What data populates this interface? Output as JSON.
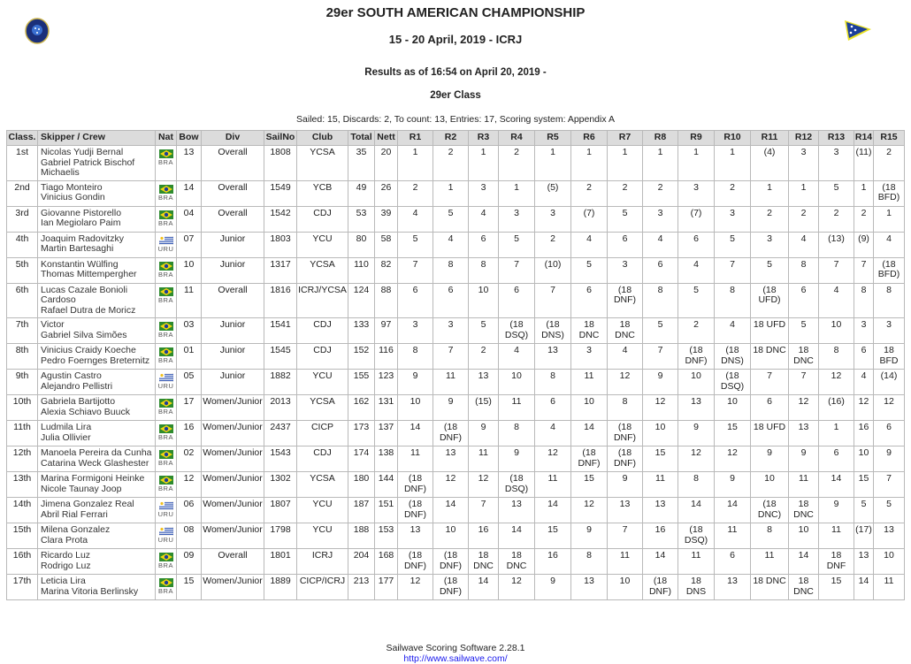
{
  "header": {
    "title": "29er SOUTH AMERICAN CHAMPIONSHIP",
    "subtitle": "15 - 20 April, 2019 - ICRJ",
    "results_as_of": "Results as of 16:54 on April 20, 2019 -",
    "class_name": "29er Class",
    "info": "Sailed: 15, Discards: 2, To count: 13, Entries: 17, Scoring system: Appendix A",
    "left_logo": "club-emblem-icon",
    "right_logo": "burgee-flag-icon"
  },
  "colors": {
    "header_bg": "#dcdcdc",
    "border": "#b9b9b9",
    "link": "#1a1aee",
    "brazil_green": "#2e8b2e",
    "uruguay_blue": "#2a4fb0"
  },
  "table": {
    "columns": [
      "Class.",
      "Skipper / Crew",
      "Nat",
      "Bow",
      "Div",
      "SailNo",
      "Club",
      "Total",
      "Nett",
      "R1",
      "R2",
      "R3",
      "R4",
      "R5",
      "R6",
      "R7",
      "R8",
      "R9",
      "R10",
      "R11",
      "R12",
      "R13",
      "R14",
      "R15"
    ],
    "rows": [
      {
        "pos": "1st",
        "skipper": "Nicolas Yudji Bernal",
        "crew": "Gabriel Patrick Bischof Michaelis",
        "nat": "BRA",
        "bow": "13",
        "div": "Overall",
        "sailno": "1808",
        "club": "YCSA",
        "total": "35",
        "nett": "20",
        "races": [
          "1",
          "2",
          "1",
          "2",
          "1",
          "1",
          "1",
          "1",
          "1",
          "1",
          "(4)",
          "3",
          "3",
          "(11)",
          "2"
        ]
      },
      {
        "pos": "2nd",
        "skipper": "Tiago Monteiro",
        "crew": "Vinicius Gondin",
        "nat": "BRA",
        "bow": "14",
        "div": "Overall",
        "sailno": "1549",
        "club": "YCB",
        "total": "49",
        "nett": "26",
        "races": [
          "2",
          "1",
          "3",
          "1",
          "(5)",
          "2",
          "2",
          "2",
          "3",
          "2",
          "1",
          "1",
          "5",
          "1",
          "(18 BFD)"
        ]
      },
      {
        "pos": "3rd",
        "skipper": "Giovanne Pistorello",
        "crew": "Ian Megiolaro Paim",
        "nat": "BRA",
        "bow": "04",
        "div": "Overall",
        "sailno": "1542",
        "club": "CDJ",
        "total": "53",
        "nett": "39",
        "races": [
          "4",
          "5",
          "4",
          "3",
          "3",
          "(7)",
          "5",
          "3",
          "(7)",
          "3",
          "2",
          "2",
          "2",
          "2",
          "1"
        ]
      },
      {
        "pos": "4th",
        "skipper": "Joaquim Radovitzky",
        "crew": "Martin Bartesaghi",
        "nat": "URU",
        "bow": "07",
        "div": "Junior",
        "sailno": "1803",
        "club": "YCU",
        "total": "80",
        "nett": "58",
        "races": [
          "5",
          "4",
          "6",
          "5",
          "2",
          "4",
          "6",
          "4",
          "6",
          "5",
          "3",
          "4",
          "(13)",
          "(9)",
          "4"
        ]
      },
      {
        "pos": "5th",
        "skipper": "Konstantin Wülfing",
        "crew": "Thomas Mittempergher",
        "nat": "BRA",
        "bow": "10",
        "div": "Junior",
        "sailno": "1317",
        "club": "YCSA",
        "total": "110",
        "nett": "82",
        "races": [
          "7",
          "8",
          "8",
          "7",
          "(10)",
          "5",
          "3",
          "6",
          "4",
          "7",
          "5",
          "8",
          "7",
          "7",
          "(18 BFD)"
        ]
      },
      {
        "pos": "6th",
        "skipper": "Lucas Cazale Bonioli Cardoso",
        "crew": "Rafael Dutra de Moricz",
        "nat": "BRA",
        "bow": "11",
        "div": "Overall",
        "sailno": "1816",
        "club": "ICRJ/YCSA",
        "total": "124",
        "nett": "88",
        "races": [
          "6",
          "6",
          "10",
          "6",
          "7",
          "6",
          "(18 DNF)",
          "8",
          "5",
          "8",
          "(18 UFD)",
          "6",
          "4",
          "8",
          "8"
        ]
      },
      {
        "pos": "7th",
        "skipper": "Victor",
        "crew": "Gabriel Silva Simões",
        "nat": "BRA",
        "bow": "03",
        "div": "Junior",
        "sailno": "1541",
        "club": "CDJ",
        "total": "133",
        "nett": "97",
        "races": [
          "3",
          "3",
          "5",
          "(18 DSQ)",
          "(18 DNS)",
          "18 DNC",
          "18 DNC",
          "5",
          "2",
          "4",
          "18 UFD",
          "5",
          "10",
          "3",
          "3"
        ]
      },
      {
        "pos": "8th",
        "skipper": "Vinicius Craidy Koeche",
        "crew": "Pedro Foernges Breternitz",
        "nat": "BRA",
        "bow": "01",
        "div": "Junior",
        "sailno": "1545",
        "club": "CDJ",
        "total": "152",
        "nett": "116",
        "races": [
          "8",
          "7",
          "2",
          "4",
          "13",
          "3",
          "4",
          "7",
          "(18 DNF)",
          "(18 DNS)",
          "18 DNC",
          "18 DNC",
          "8",
          "6",
          "18 BFD"
        ]
      },
      {
        "pos": "9th",
        "skipper": "Agustin Castro",
        "crew": "Alejandro Pellistri",
        "nat": "URU",
        "bow": "05",
        "div": "Junior",
        "sailno": "1882",
        "club": "YCU",
        "total": "155",
        "nett": "123",
        "races": [
          "9",
          "11",
          "13",
          "10",
          "8",
          "11",
          "12",
          "9",
          "10",
          "(18 DSQ)",
          "7",
          "7",
          "12",
          "4",
          "(14)"
        ]
      },
      {
        "pos": "10th",
        "skipper": "Gabriela Bartijotto",
        "crew": "Alexia Schiavo Buuck",
        "nat": "BRA",
        "bow": "17",
        "div": "Women/Junior",
        "sailno": "2013",
        "club": "YCSA",
        "total": "162",
        "nett": "131",
        "races": [
          "10",
          "9",
          "(15)",
          "11",
          "6",
          "10",
          "8",
          "12",
          "13",
          "10",
          "6",
          "12",
          "(16)",
          "12",
          "12"
        ]
      },
      {
        "pos": "11th",
        "skipper": "Ludmila Lira",
        "crew": "Julia Ollivier",
        "nat": "BRA",
        "bow": "16",
        "div": "Women/Junior",
        "sailno": "2437",
        "club": "CICP",
        "total": "173",
        "nett": "137",
        "races": [
          "14",
          "(18 DNF)",
          "9",
          "8",
          "4",
          "14",
          "(18 DNF)",
          "10",
          "9",
          "15",
          "18 UFD",
          "13",
          "1",
          "16",
          "6"
        ]
      },
      {
        "pos": "12th",
        "skipper": "Manoela Pereira da Cunha",
        "crew": "Catarina Weck Glashester",
        "nat": "BRA",
        "bow": "02",
        "div": "Women/Junior",
        "sailno": "1543",
        "club": "CDJ",
        "total": "174",
        "nett": "138",
        "races": [
          "11",
          "13",
          "11",
          "9",
          "12",
          "(18 DNF)",
          "(18 DNF)",
          "15",
          "12",
          "12",
          "9",
          "9",
          "6",
          "10",
          "9"
        ]
      },
      {
        "pos": "13th",
        "skipper": "Marina Formigoni Heinke",
        "crew": "Nicole Taunay Joop",
        "nat": "BRA",
        "bow": "12",
        "div": "Women/Junior",
        "sailno": "1302",
        "club": "YCSA",
        "total": "180",
        "nett": "144",
        "races": [
          "(18 DNF)",
          "12",
          "12",
          "(18 DSQ)",
          "11",
          "15",
          "9",
          "11",
          "8",
          "9",
          "10",
          "11",
          "14",
          "15",
          "7"
        ]
      },
      {
        "pos": "14th",
        "skipper": "Jimena Gonzalez Real",
        "crew": "Abril Rial Ferrari",
        "nat": "URU",
        "bow": "06",
        "div": "Women/Junior",
        "sailno": "1807",
        "club": "YCU",
        "total": "187",
        "nett": "151",
        "races": [
          "(18 DNF)",
          "14",
          "7",
          "13",
          "14",
          "12",
          "13",
          "13",
          "14",
          "14",
          "(18 DNC)",
          "18 DNC",
          "9",
          "5",
          "5"
        ]
      },
      {
        "pos": "15th",
        "skipper": "Milena Gonzalez",
        "crew": "Clara Prota",
        "nat": "URU",
        "bow": "08",
        "div": "Women/Junior",
        "sailno": "1798",
        "club": "YCU",
        "total": "188",
        "nett": "153",
        "races": [
          "13",
          "10",
          "16",
          "14",
          "15",
          "9",
          "7",
          "16",
          "(18 DSQ)",
          "11",
          "8",
          "10",
          "11",
          "(17)",
          "13"
        ]
      },
      {
        "pos": "16th",
        "skipper": "Ricardo Luz",
        "crew": "Rodrigo Luz",
        "nat": "BRA",
        "bow": "09",
        "div": "Overall",
        "sailno": "1801",
        "club": "ICRJ",
        "total": "204",
        "nett": "168",
        "races": [
          "(18 DNF)",
          "(18 DNF)",
          "18 DNC",
          "18 DNC",
          "16",
          "8",
          "11",
          "14",
          "11",
          "6",
          "11",
          "14",
          "18 DNF",
          "13",
          "10"
        ]
      },
      {
        "pos": "17th",
        "skipper": "Leticia Lira",
        "crew": "Marina Vitoria Berlinsky",
        "nat": "BRA",
        "bow": "15",
        "div": "Women/Junior",
        "sailno": "1889",
        "club": "CICP/ICRJ",
        "total": "213",
        "nett": "177",
        "races": [
          "12",
          "(18 DNF)",
          "14",
          "12",
          "9",
          "13",
          "10",
          "(18 DNF)",
          "18 DNS",
          "13",
          "18 DNC",
          "18 DNC",
          "15",
          "14",
          "11"
        ]
      }
    ]
  },
  "footer": {
    "software": "Sailwave Scoring Software 2.28.1",
    "link": "http://www.sailwave.com/"
  }
}
